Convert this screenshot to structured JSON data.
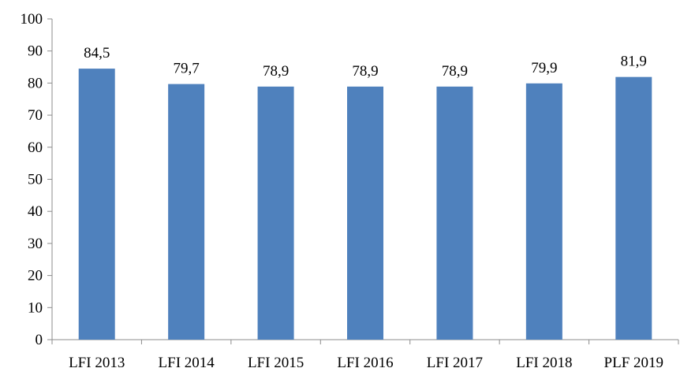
{
  "chart_data": {
    "type": "bar",
    "title": "",
    "xlabel": "",
    "ylabel": "",
    "categories": [
      "LFI 2013",
      "LFI 2014",
      "LFI 2015",
      "LFI 2016",
      "LFI 2017",
      "LFI 2018",
      "PLF 2019"
    ],
    "values": [
      84.5,
      79.7,
      78.9,
      78.9,
      78.9,
      79.9,
      81.9
    ],
    "data_labels": [
      "84,5",
      "79,7",
      "78,9",
      "78,9",
      "78,9",
      "79,9",
      "81,9"
    ],
    "ylim": [
      0,
      100
    ],
    "yticks": [
      "0",
      "10",
      "20",
      "30",
      "40",
      "50",
      "60",
      "70",
      "80",
      "90",
      "100"
    ],
    "grid": false,
    "legend": "none",
    "bar_color": "#4f81bd"
  }
}
